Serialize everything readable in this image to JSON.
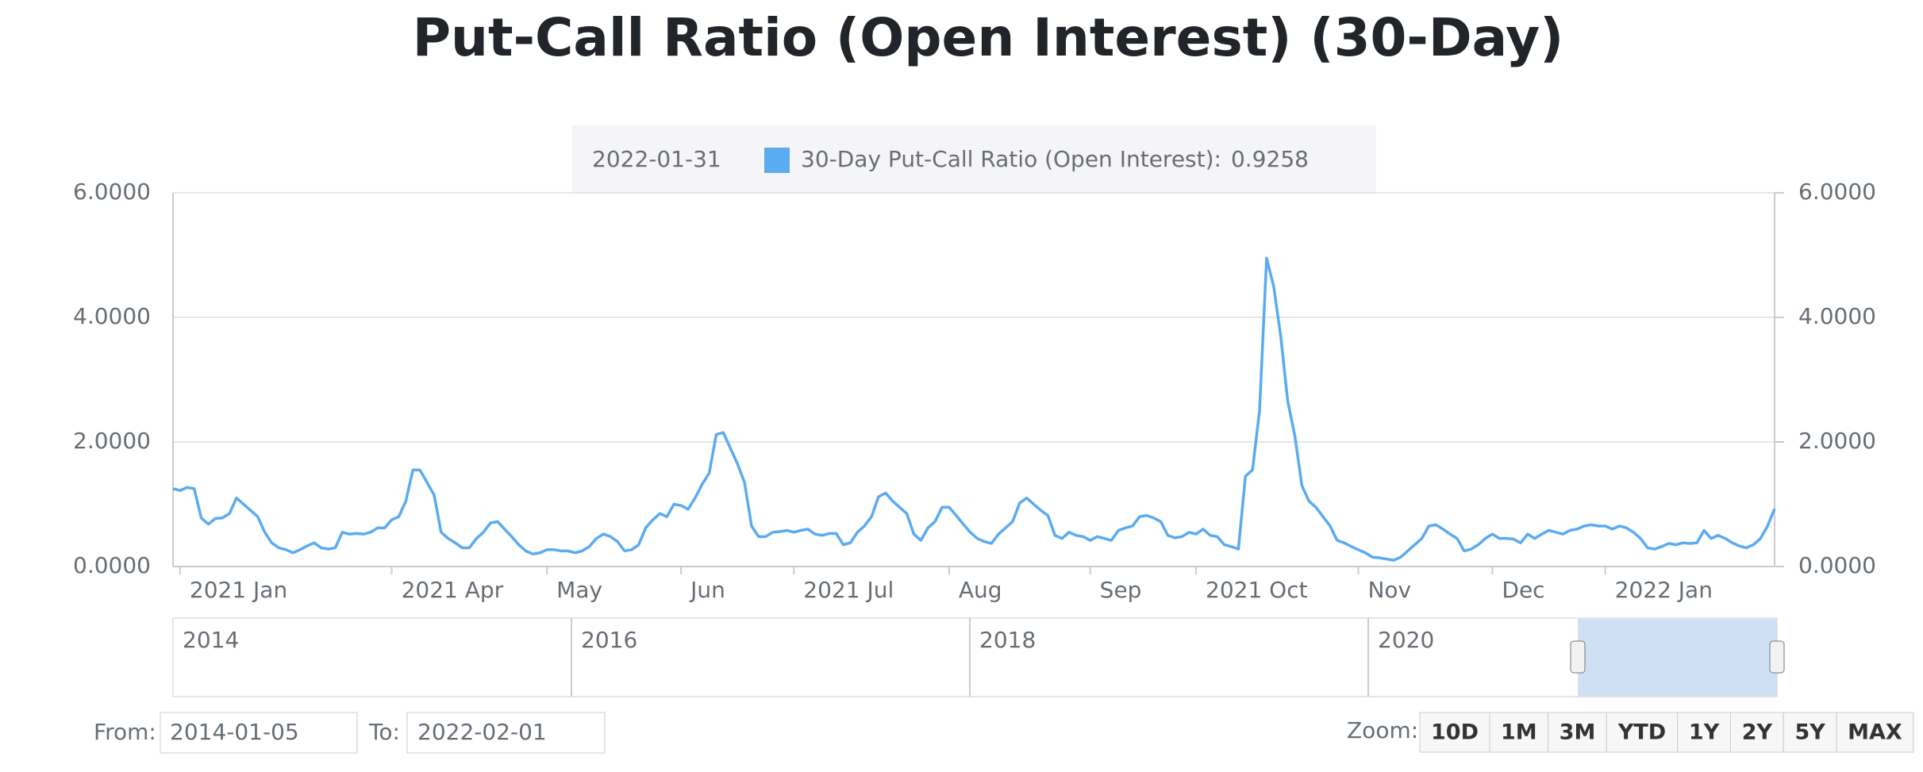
{
  "chart_data": {
    "type": "line",
    "title": "Put-Call Ratio (Open Interest) (30-Day)",
    "series": [
      {
        "color": "#5aabf0",
        "values": [
          1.25,
          1.22,
          1.27,
          1.25,
          0.78,
          0.68,
          0.77,
          0.78,
          0.85,
          1.1,
          1.0,
          0.9,
          0.8,
          0.55,
          0.38,
          0.3,
          0.27,
          0.22,
          0.27,
          0.33,
          0.38,
          0.3,
          0.28,
          0.3,
          0.55,
          0.52,
          0.53,
          0.52,
          0.55,
          0.62,
          0.62,
          0.75,
          0.8,
          1.05,
          1.55,
          1.55,
          1.35,
          1.15,
          0.55,
          0.45,
          0.38,
          0.3,
          0.3,
          0.45,
          0.55,
          0.7,
          0.72,
          0.6,
          0.48,
          0.35,
          0.25,
          0.2,
          0.22,
          0.27,
          0.27,
          0.25,
          0.25,
          0.22,
          0.25,
          0.32,
          0.45,
          0.52,
          0.48,
          0.4,
          0.25,
          0.27,
          0.35,
          0.62,
          0.75,
          0.85,
          0.8,
          1.0,
          0.98,
          0.92,
          1.1,
          1.32,
          1.5,
          2.12,
          2.15,
          1.9,
          1.65,
          1.35,
          0.65,
          0.48,
          0.48,
          0.55,
          0.56,
          0.58,
          0.55,
          0.58,
          0.6,
          0.52,
          0.5,
          0.53,
          0.53,
          0.35,
          0.38,
          0.55,
          0.65,
          0.8,
          1.12,
          1.18,
          1.05,
          0.95,
          0.85,
          0.52,
          0.42,
          0.62,
          0.72,
          0.95,
          0.95,
          0.82,
          0.68,
          0.55,
          0.45,
          0.4,
          0.37,
          0.52,
          0.62,
          0.72,
          1.02,
          1.1,
          1.0,
          0.9,
          0.82,
          0.5,
          0.45,
          0.55,
          0.5,
          0.48,
          0.42,
          0.48,
          0.45,
          0.42,
          0.58,
          0.62,
          0.65,
          0.8,
          0.82,
          0.78,
          0.72,
          0.5,
          0.46,
          0.48,
          0.55,
          0.52,
          0.6,
          0.5,
          0.48,
          0.35,
          0.32,
          0.28,
          1.45,
          1.55,
          2.5,
          4.95,
          4.5,
          3.7,
          2.65,
          2.1,
          1.3,
          1.05,
          0.95,
          0.8,
          0.65,
          0.42,
          0.38,
          0.32,
          0.27,
          0.22,
          0.15,
          0.14,
          0.12,
          0.1,
          0.15,
          0.25,
          0.35,
          0.45,
          0.65,
          0.67,
          0.6,
          0.52,
          0.45,
          0.25,
          0.28,
          0.35,
          0.45,
          0.52,
          0.45,
          0.45,
          0.44,
          0.38,
          0.52,
          0.45,
          0.52,
          0.58,
          0.55,
          0.52,
          0.58,
          0.6,
          0.65,
          0.67,
          0.65,
          0.65,
          0.6,
          0.65,
          0.62,
          0.55,
          0.45,
          0.3,
          0.28,
          0.32,
          0.37,
          0.35,
          0.38,
          0.37,
          0.38,
          0.58,
          0.45,
          0.5,
          0.45,
          0.38,
          0.33,
          0.3,
          0.35,
          0.45,
          0.65,
          0.9258
        ]
      }
    ],
    "xlim": [
      0,
      227
    ],
    "xticks": [
      {
        "value": 1,
        "label": "2021 Jan"
      },
      {
        "value": 31,
        "label": "2021 Apr"
      },
      {
        "value": 53,
        "label": "May"
      },
      {
        "value": 72,
        "label": "Jun"
      },
      {
        "value": 88,
        "label": "2021 Jul"
      },
      {
        "value": 110,
        "label": "Aug"
      },
      {
        "value": 130,
        "label": "Sep"
      },
      {
        "value": 145,
        "label": "2021 Oct"
      },
      {
        "value": 168,
        "label": "Nov"
      },
      {
        "value": 187,
        "label": "Dec"
      },
      {
        "value": 203,
        "label": "2022 Jan"
      }
    ],
    "ylim": [
      0,
      6
    ],
    "yticks": [
      {
        "value": 0,
        "label": "0.0000"
      },
      {
        "value": 2,
        "label": "2.0000"
      },
      {
        "value": 4,
        "label": "4.0000"
      },
      {
        "value": 6,
        "label": "6.0000"
      }
    ],
    "y2lim": [
      0,
      6
    ],
    "y2ticks": [
      {
        "value": 0,
        "label": "0.0000"
      },
      {
        "value": 2,
        "label": "2.0000"
      },
      {
        "value": 4,
        "label": "4.0000"
      },
      {
        "value": 6,
        "label": "6.0000"
      }
    ],
    "grid": true,
    "tooltip": {
      "date": "2022-01-31",
      "label": "30-Day Put-Call Ratio (Open Interest):",
      "value": 0.9258
    }
  },
  "navigator": {
    "labels": [
      "2014",
      "2016",
      "2018",
      "2020"
    ]
  },
  "range_selector": {
    "from_label": "From:",
    "from": "2014-01-05",
    "to_label": "To:",
    "to": "2022-02-01",
    "zoom_label": "Zoom:",
    "buttons": [
      "10D",
      "1M",
      "3M",
      "YTD",
      "1Y",
      "2Y",
      "5Y",
      "MAX"
    ]
  }
}
